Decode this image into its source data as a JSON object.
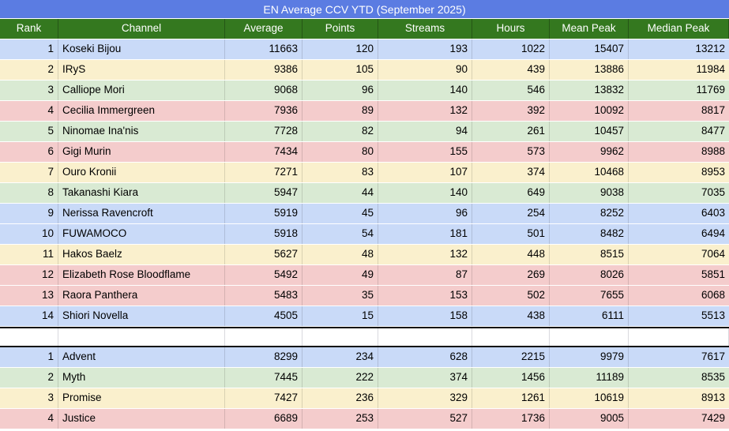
{
  "title": "EN Average CCV YTD (September 2025)",
  "columns": [
    {
      "key": "rank",
      "label": "Rank"
    },
    {
      "key": "channel",
      "label": "Channel"
    },
    {
      "key": "average",
      "label": "Average"
    },
    {
      "key": "points",
      "label": "Points"
    },
    {
      "key": "streams",
      "label": "Streams"
    },
    {
      "key": "hours",
      "label": "Hours"
    },
    {
      "key": "mean_peak",
      "label": "Mean Peak"
    },
    {
      "key": "median_peak",
      "label": "Median Peak"
    }
  ],
  "channels": [
    {
      "rank": "1",
      "channel": "Koseki Bijou",
      "average": "11663",
      "points": "120",
      "streams": "193",
      "hours": "1022",
      "mean_peak": "15407",
      "median_peak": "13212",
      "color": "blue"
    },
    {
      "rank": "2",
      "channel": "IRyS",
      "average": "9386",
      "points": "105",
      "streams": "90",
      "hours": "439",
      "mean_peak": "13886",
      "median_peak": "11984",
      "color": "yellow"
    },
    {
      "rank": "3",
      "channel": "Calliope Mori",
      "average": "9068",
      "points": "96",
      "streams": "140",
      "hours": "546",
      "mean_peak": "13832",
      "median_peak": "11769",
      "color": "green"
    },
    {
      "rank": "4",
      "channel": "Cecilia Immergreen",
      "average": "7936",
      "points": "89",
      "streams": "132",
      "hours": "392",
      "mean_peak": "10092",
      "median_peak": "8817",
      "color": "pink"
    },
    {
      "rank": "5",
      "channel": "Ninomae Ina'nis",
      "average": "7728",
      "points": "82",
      "streams": "94",
      "hours": "261",
      "mean_peak": "10457",
      "median_peak": "8477",
      "color": "green"
    },
    {
      "rank": "6",
      "channel": "Gigi Murin",
      "average": "7434",
      "points": "80",
      "streams": "155",
      "hours": "573",
      "mean_peak": "9962",
      "median_peak": "8988",
      "color": "pink"
    },
    {
      "rank": "7",
      "channel": "Ouro Kronii",
      "average": "7271",
      "points": "83",
      "streams": "107",
      "hours": "374",
      "mean_peak": "10468",
      "median_peak": "8953",
      "color": "yellow"
    },
    {
      "rank": "8",
      "channel": "Takanashi Kiara",
      "average": "5947",
      "points": "44",
      "streams": "140",
      "hours": "649",
      "mean_peak": "9038",
      "median_peak": "7035",
      "color": "green"
    },
    {
      "rank": "9",
      "channel": "Nerissa Ravencroft",
      "average": "5919",
      "points": "45",
      "streams": "96",
      "hours": "254",
      "mean_peak": "8252",
      "median_peak": "6403",
      "color": "blue"
    },
    {
      "rank": "10",
      "channel": "FUWAMOCO",
      "average": "5918",
      "points": "54",
      "streams": "181",
      "hours": "501",
      "mean_peak": "8482",
      "median_peak": "6494",
      "color": "blue"
    },
    {
      "rank": "11",
      "channel": "Hakos Baelz",
      "average": "5627",
      "points": "48",
      "streams": "132",
      "hours": "448",
      "mean_peak": "8515",
      "median_peak": "7064",
      "color": "yellow"
    },
    {
      "rank": "12",
      "channel": "Elizabeth Rose Bloodflame",
      "average": "5492",
      "points": "49",
      "streams": "87",
      "hours": "269",
      "mean_peak": "8026",
      "median_peak": "5851",
      "color": "pink"
    },
    {
      "rank": "13",
      "channel": "Raora Panthera",
      "average": "5483",
      "points": "35",
      "streams": "153",
      "hours": "502",
      "mean_peak": "7655",
      "median_peak": "6068",
      "color": "pink"
    },
    {
      "rank": "14",
      "channel": "Shiori Novella",
      "average": "4505",
      "points": "15",
      "streams": "158",
      "hours": "438",
      "mean_peak": "6111",
      "median_peak": "5513",
      "color": "blue"
    }
  ],
  "groups": [
    {
      "rank": "1",
      "channel": "Advent",
      "average": "8299",
      "points": "234",
      "streams": "628",
      "hours": "2215",
      "mean_peak": "9979",
      "median_peak": "7617",
      "color": "blue"
    },
    {
      "rank": "2",
      "channel": "Myth",
      "average": "7445",
      "points": "222",
      "streams": "374",
      "hours": "1456",
      "mean_peak": "11189",
      "median_peak": "8535",
      "color": "green"
    },
    {
      "rank": "3",
      "channel": "Promise",
      "average": "7427",
      "points": "236",
      "streams": "329",
      "hours": "1261",
      "mean_peak": "10619",
      "median_peak": "8913",
      "color": "yellow"
    },
    {
      "rank": "4",
      "channel": "Justice",
      "average": "6689",
      "points": "253",
      "streams": "527",
      "hours": "1736",
      "mean_peak": "9005",
      "median_peak": "7429",
      "color": "pink"
    }
  ],
  "colors": {
    "title_bg": "#5b7ce2",
    "header_bg": "#34781f",
    "row_blue": "#c9daf8",
    "row_yellow": "#faf0cd",
    "row_green": "#d9ead3",
    "row_pink": "#f4cccc",
    "section_border": "#111111"
  }
}
